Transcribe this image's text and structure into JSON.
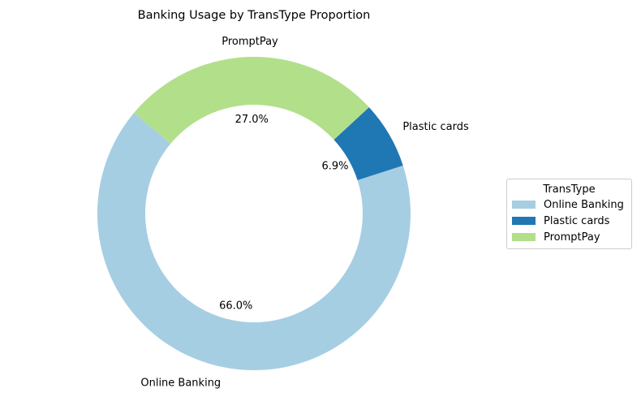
{
  "chart_data": {
    "type": "pie",
    "donut": true,
    "title": "Banking Usage by TransType Proportion",
    "categories": [
      "Online Banking",
      "Plastic cards",
      "PromptPay"
    ],
    "values": [
      66.0,
      6.9,
      27.0
    ],
    "value_labels": [
      "66.0%",
      "6.9%",
      "27.0%"
    ],
    "colors": [
      "#a6cee3",
      "#1f78b4",
      "#b2df8a"
    ],
    "legend_title": "TransType",
    "legend": "right"
  }
}
